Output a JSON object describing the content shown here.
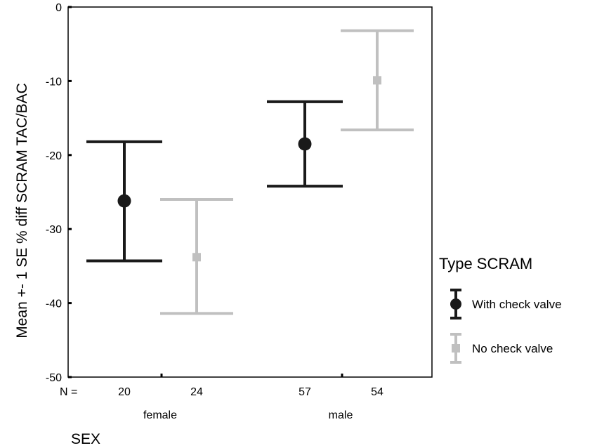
{
  "chart_data": {
    "type": "errorbar",
    "title": "",
    "ylabel": "Mean +- 1 SE  % diff SCRAM TAC/BAC",
    "xlabel": "SEX",
    "ylim": [
      -50,
      0
    ],
    "yticks": [
      0,
      -10,
      -20,
      -30,
      -40,
      -50
    ],
    "categories": [
      "female",
      "male"
    ],
    "n_label": "N =",
    "legend": {
      "title": "Type SCRAM",
      "position": "right"
    },
    "series": [
      {
        "name": "With check valve",
        "color": "#1a1a1a",
        "marker": "circle",
        "points": [
          {
            "category": "female",
            "n": "20",
            "mean": -26.2,
            "lower": -34.3,
            "upper": -18.2
          },
          {
            "category": "male",
            "n": "57",
            "mean": -18.5,
            "lower": -24.2,
            "upper": -12.8
          }
        ]
      },
      {
        "name": "No check valve",
        "color": "#c0c0c0",
        "marker": "square",
        "points": [
          {
            "category": "female",
            "n": "24",
            "mean": -33.8,
            "lower": -41.4,
            "upper": -26.0
          },
          {
            "category": "male",
            "n": "54",
            "mean": -9.9,
            "lower": -16.6,
            "upper": -3.2
          }
        ]
      }
    ]
  }
}
